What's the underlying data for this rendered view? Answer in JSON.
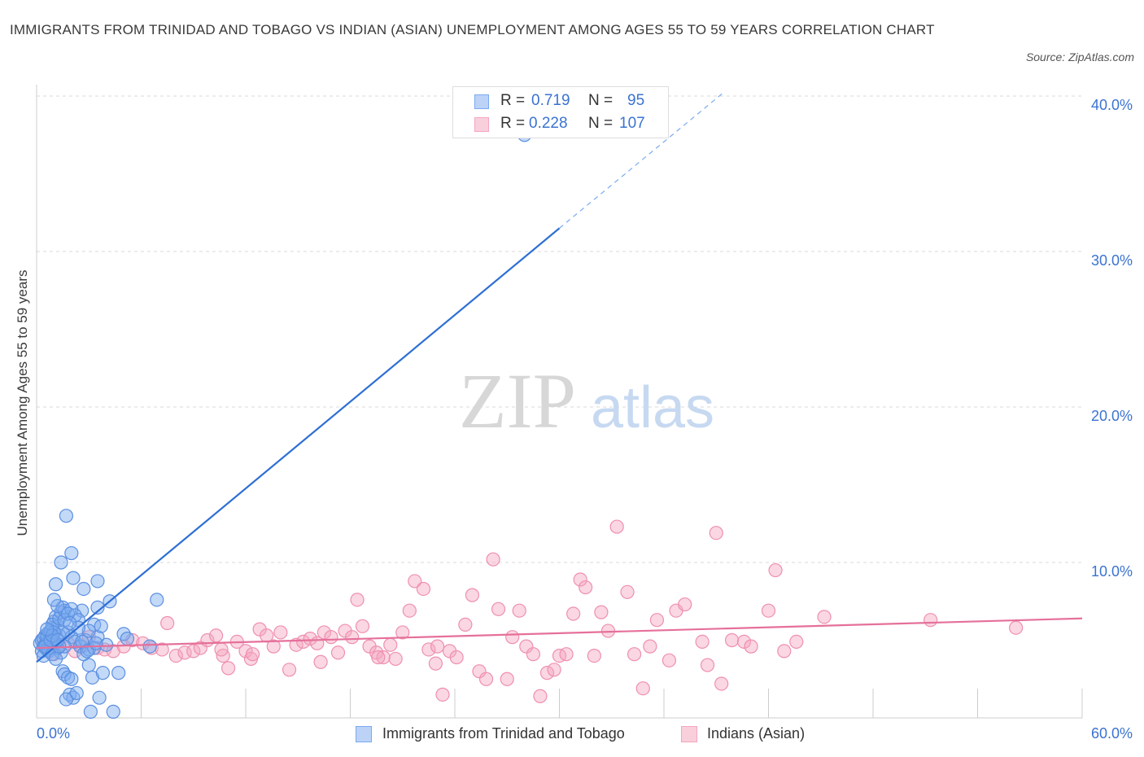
{
  "title": "IMMIGRANTS FROM TRINIDAD AND TOBAGO VS INDIAN (ASIAN) UNEMPLOYMENT AMONG AGES 55 TO 59 YEARS CORRELATION CHART",
  "source": "Source: ZipAtlas.com",
  "watermark": {
    "zip": "ZIP",
    "atlas": "atlas"
  },
  "legend_stats": [
    {
      "r_label": "R =",
      "r_value": "0.719",
      "n_label": "N =",
      "n_value": "95",
      "color": "#7aaaf0"
    },
    {
      "r_label": "R =",
      "r_value": "0.228",
      "n_label": "N =",
      "n_value": "107",
      "color": "#f4a6bf"
    }
  ],
  "legend_bottom": [
    {
      "label": "Immigrants from Trinidad and Tobago",
      "color": "#7aaaf0"
    },
    {
      "label": "Indians (Asian)",
      "color": "#f4a6bf"
    }
  ],
  "colors": {
    "blue_point": "#5b8fe0",
    "pink_point": "#ef8fb0",
    "blue_line": "#2e6fd4",
    "pink_line": "#e5709a",
    "tick_text": "#3b73d1"
  },
  "chart_data": {
    "type": "scatter",
    "title": "IMMIGRANTS FROM TRINIDAD AND TOBAGO VS INDIAN (ASIAN) UNEMPLOYMENT AMONG AGES 55 TO 59 YEARS CORRELATION CHART",
    "xlabel": "",
    "ylabel": "Unemployment Among Ages 55 to 59 years",
    "xlim": [
      0,
      60
    ],
    "ylim": [
      0,
      40
    ],
    "x_tick_labels": [
      "0.0%",
      "60.0%"
    ],
    "y_tick_values": [
      10,
      20,
      30,
      40
    ],
    "y_tick_labels": [
      "10.0%",
      "20.0%",
      "30.0%",
      "40.0%"
    ],
    "grid": true,
    "series": [
      {
        "name": "Immigrants from Trinidad and Tobago",
        "R": 0.719,
        "N": 95,
        "trend": {
          "x0": 0,
          "y0": 3.6,
          "x1": 30,
          "y1": 31.5,
          "dashed_to_x": 39.5,
          "dashed_to_y": 40.3
        },
        "points": [
          [
            0.2,
            4.8
          ],
          [
            0.3,
            5.0
          ],
          [
            0.4,
            4.6
          ],
          [
            0.5,
            5.3
          ],
          [
            0.6,
            4.9
          ],
          [
            0.7,
            5.5
          ],
          [
            0.3,
            4.3
          ],
          [
            0.4,
            5.1
          ],
          [
            0.5,
            4.7
          ],
          [
            0.6,
            5.2
          ],
          [
            0.8,
            4.5
          ],
          [
            0.9,
            5.8
          ],
          [
            1.0,
            6.2
          ],
          [
            1.1,
            6.5
          ],
          [
            1.2,
            5.9
          ],
          [
            1.0,
            4.8
          ],
          [
            0.8,
            5.6
          ],
          [
            0.9,
            6.0
          ],
          [
            1.3,
            6.4
          ],
          [
            1.4,
            6.8
          ],
          [
            1.5,
            7.1
          ],
          [
            1.6,
            6.9
          ],
          [
            1.2,
            7.2
          ],
          [
            1.0,
            7.6
          ],
          [
            1.1,
            8.6
          ],
          [
            1.4,
            10.0
          ],
          [
            2.0,
            10.6
          ],
          [
            2.1,
            9.0
          ],
          [
            2.7,
            8.3
          ],
          [
            3.5,
            8.8
          ],
          [
            1.7,
            13.0
          ],
          [
            1.6,
            6.3
          ],
          [
            1.8,
            5.5
          ],
          [
            2.0,
            5.2
          ],
          [
            2.2,
            4.9
          ],
          [
            2.5,
            4.6
          ],
          [
            2.7,
            4.1
          ],
          [
            3.0,
            4.4
          ],
          [
            3.3,
            6.0
          ],
          [
            3.5,
            5.2
          ],
          [
            1.4,
            4.2
          ],
          [
            1.2,
            4.5
          ],
          [
            1.0,
            4.9
          ],
          [
            0.6,
            4.4
          ],
          [
            0.4,
            4.0
          ],
          [
            1.5,
            3.0
          ],
          [
            1.6,
            2.8
          ],
          [
            1.8,
            2.6
          ],
          [
            2.0,
            2.5
          ],
          [
            1.9,
            1.5
          ],
          [
            2.1,
            1.3
          ],
          [
            1.7,
            1.2
          ],
          [
            2.3,
            1.6
          ],
          [
            3.2,
            2.6
          ],
          [
            3.8,
            2.9
          ],
          [
            4.7,
            2.9
          ],
          [
            3.0,
            3.4
          ],
          [
            3.6,
            1.3
          ],
          [
            3.1,
            0.4
          ],
          [
            4.4,
            0.4
          ],
          [
            5.0,
            5.4
          ],
          [
            5.2,
            5.1
          ],
          [
            4.2,
            7.5
          ],
          [
            6.9,
            7.6
          ],
          [
            3.5,
            7.1
          ],
          [
            2.6,
            6.9
          ],
          [
            2.0,
            7.0
          ],
          [
            1.8,
            6.7
          ],
          [
            2.2,
            6.6
          ],
          [
            2.4,
            6.3
          ],
          [
            2.8,
            5.0
          ],
          [
            3.3,
            4.5
          ],
          [
            3.0,
            5.6
          ],
          [
            3.7,
            5.9
          ],
          [
            4.0,
            4.7
          ],
          [
            6.5,
            4.6
          ],
          [
            2.6,
            4.9
          ],
          [
            1.3,
            5.3
          ],
          [
            1.6,
            4.6
          ],
          [
            0.7,
            4.3
          ],
          [
            0.5,
            4.6
          ],
          [
            0.9,
            4.1
          ],
          [
            1.1,
            3.8
          ],
          [
            1.5,
            5.5
          ],
          [
            2.4,
            5.8
          ],
          [
            1.9,
            6.1
          ],
          [
            1.0,
            5.5
          ],
          [
            0.8,
            5.0
          ],
          [
            2.9,
            4.3
          ],
          [
            3.4,
            4.8
          ],
          [
            1.3,
            4.6
          ],
          [
            0.9,
            5.3
          ],
          [
            1.2,
            5.0
          ],
          [
            28.0,
            37.5
          ],
          [
            0.6,
            5.7
          ]
        ]
      },
      {
        "name": "Indians (Asian)",
        "R": 0.228,
        "N": 107,
        "trend": {
          "x0": 0,
          "y0": 4.5,
          "x1": 60,
          "y1": 6.4
        },
        "points": [
          [
            0.5,
            4.5
          ],
          [
            1.0,
            4.1
          ],
          [
            1.3,
            4.7
          ],
          [
            1.8,
            4.8
          ],
          [
            2.2,
            4.3
          ],
          [
            2.6,
            4.6
          ],
          [
            3.0,
            5.2
          ],
          [
            3.5,
            4.5
          ],
          [
            3.9,
            4.4
          ],
          [
            4.4,
            4.3
          ],
          [
            5.0,
            4.6
          ],
          [
            5.5,
            5.0
          ],
          [
            6.1,
            4.8
          ],
          [
            6.6,
            4.5
          ],
          [
            7.2,
            4.4
          ],
          [
            7.5,
            6.1
          ],
          [
            8.0,
            4.0
          ],
          [
            8.5,
            4.2
          ],
          [
            9.0,
            4.3
          ],
          [
            9.4,
            4.5
          ],
          [
            9.8,
            5.0
          ],
          [
            10.3,
            5.3
          ],
          [
            10.7,
            4.0
          ],
          [
            11.0,
            3.2
          ],
          [
            11.5,
            4.9
          ],
          [
            12.0,
            4.3
          ],
          [
            12.3,
            3.8
          ],
          [
            12.8,
            5.7
          ],
          [
            13.2,
            5.3
          ],
          [
            13.6,
            4.6
          ],
          [
            14.0,
            5.5
          ],
          [
            14.5,
            3.1
          ],
          [
            14.9,
            4.7
          ],
          [
            15.3,
            4.9
          ],
          [
            15.7,
            5.1
          ],
          [
            16.1,
            4.8
          ],
          [
            16.5,
            5.5
          ],
          [
            16.9,
            5.2
          ],
          [
            17.3,
            4.2
          ],
          [
            17.7,
            5.6
          ],
          [
            18.1,
            5.2
          ],
          [
            18.4,
            7.6
          ],
          [
            18.7,
            5.9
          ],
          [
            19.1,
            4.6
          ],
          [
            19.5,
            4.2
          ],
          [
            19.9,
            3.9
          ],
          [
            20.3,
            4.7
          ],
          [
            20.6,
            3.8
          ],
          [
            21.0,
            5.5
          ],
          [
            21.4,
            6.9
          ],
          [
            21.7,
            8.8
          ],
          [
            22.2,
            8.3
          ],
          [
            22.5,
            4.4
          ],
          [
            22.9,
            3.5
          ],
          [
            23.3,
            1.5
          ],
          [
            23.7,
            4.3
          ],
          [
            24.1,
            3.9
          ],
          [
            24.6,
            6.0
          ],
          [
            25.0,
            7.9
          ],
          [
            25.4,
            3.0
          ],
          [
            25.8,
            2.5
          ],
          [
            26.2,
            10.2
          ],
          [
            26.5,
            7.0
          ],
          [
            27.0,
            2.5
          ],
          [
            27.3,
            5.2
          ],
          [
            27.7,
            6.9
          ],
          [
            28.1,
            4.6
          ],
          [
            28.5,
            4.1
          ],
          [
            28.9,
            1.4
          ],
          [
            29.3,
            2.9
          ],
          [
            29.7,
            3.1
          ],
          [
            30.0,
            4.0
          ],
          [
            30.4,
            4.1
          ],
          [
            30.8,
            6.7
          ],
          [
            31.2,
            8.9
          ],
          [
            31.5,
            8.4
          ],
          [
            32.0,
            4.0
          ],
          [
            32.4,
            6.8
          ],
          [
            32.8,
            5.6
          ],
          [
            33.3,
            12.3
          ],
          [
            33.9,
            8.1
          ],
          [
            34.3,
            4.1
          ],
          [
            34.8,
            1.9
          ],
          [
            35.2,
            4.6
          ],
          [
            35.6,
            6.3
          ],
          [
            36.3,
            3.7
          ],
          [
            36.7,
            6.9
          ],
          [
            37.2,
            7.3
          ],
          [
            38.2,
            4.9
          ],
          [
            38.5,
            3.4
          ],
          [
            39.0,
            11.9
          ],
          [
            39.3,
            2.2
          ],
          [
            39.9,
            5.0
          ],
          [
            40.6,
            4.9
          ],
          [
            41.0,
            4.6
          ],
          [
            42.0,
            6.9
          ],
          [
            42.4,
            9.5
          ],
          [
            42.9,
            4.3
          ],
          [
            43.6,
            4.9
          ],
          [
            45.2,
            6.5
          ],
          [
            51.3,
            6.3
          ],
          [
            56.2,
            5.8
          ],
          [
            12.4,
            4.1
          ],
          [
            16.3,
            3.6
          ],
          [
            19.6,
            3.9
          ],
          [
            23.0,
            4.6
          ],
          [
            10.6,
            4.4
          ]
        ]
      }
    ]
  }
}
